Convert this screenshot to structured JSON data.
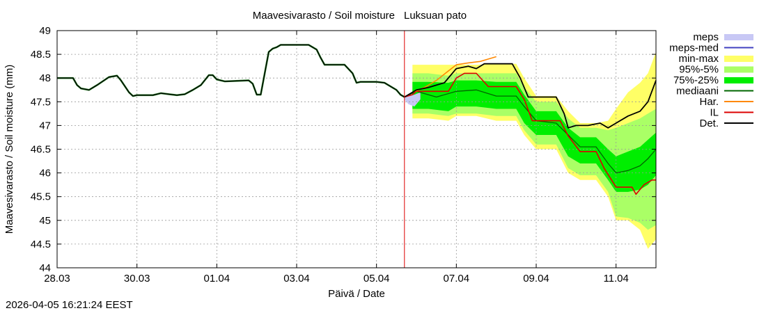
{
  "chart_data": {
    "type": "line",
    "title": "Maavesivarasto / Soil moisture",
    "station": "Luksuan pato",
    "xlabel": "Päivä / Date",
    "ylabel": "Maavesivarasto / Soil moisture (mm)",
    "ylim": [
      44,
      49
    ],
    "xlim_days": [
      0,
      15
    ],
    "y_ticks": [
      44,
      44.5,
      45,
      45.5,
      46,
      46.5,
      47,
      47.5,
      48,
      48.5,
      49
    ],
    "x_ticks": [
      {
        "day": 0,
        "label": "28.03"
      },
      {
        "day": 2,
        "label": "30.03"
      },
      {
        "day": 4,
        "label": "01.04"
      },
      {
        "day": 6,
        "label": "03.04"
      },
      {
        "day": 8,
        "label": "05.04"
      },
      {
        "day": 10,
        "label": "07.04"
      },
      {
        "day": 12,
        "label": "09.04"
      },
      {
        "day": 14,
        "label": "11.04"
      }
    ],
    "grid": true,
    "forecast_start_day": 8.7,
    "legend": [
      {
        "key": "meps",
        "label": "meps",
        "color": "#c8c8f5",
        "kind": "band"
      },
      {
        "key": "meps_med",
        "label": "meps-med",
        "color": "#4040c0",
        "kind": "line"
      },
      {
        "key": "minmax",
        "label": "min-max",
        "color": "#ffff66",
        "kind": "band"
      },
      {
        "key": "p95_5",
        "label": "95%-5%",
        "color": "#aaff66",
        "kind": "band"
      },
      {
        "key": "p75_25",
        "label": "75%-25%",
        "color": "#00ee00",
        "kind": "band"
      },
      {
        "key": "median",
        "label": "mediaani",
        "color": "#006600",
        "kind": "line"
      },
      {
        "key": "har",
        "label": "Har.",
        "color": "#ff8800",
        "kind": "line"
      },
      {
        "key": "il",
        "label": "IL",
        "color": "#dd0000",
        "kind": "line"
      },
      {
        "key": "det",
        "label": "Det.",
        "color": "#000000",
        "kind": "line"
      }
    ],
    "series": {
      "observed": {
        "x": [
          0,
          0.4,
          0.5,
          0.6,
          0.8,
          1.0,
          1.3,
          1.5,
          1.6,
          1.8,
          1.9,
          2.0,
          2.2,
          2.4,
          2.6,
          2.8,
          3.0,
          3.2,
          3.4,
          3.6,
          3.8,
          3.9,
          4.0,
          4.2,
          4.5,
          4.8,
          4.9,
          5.0,
          5.1,
          5.3,
          5.4,
          5.5,
          5.6,
          5.8,
          6.0,
          6.1,
          6.3,
          6.5,
          6.6,
          6.7,
          6.8,
          7.0,
          7.2,
          7.4,
          7.5,
          7.6,
          7.8,
          8.0,
          8.2,
          8.5,
          8.6,
          8.7
        ],
        "y": [
          48.0,
          48.0,
          47.85,
          47.78,
          47.75,
          47.85,
          48.02,
          48.05,
          47.95,
          47.7,
          47.62,
          47.64,
          47.64,
          47.64,
          47.68,
          47.66,
          47.64,
          47.66,
          47.75,
          47.85,
          48.06,
          48.06,
          47.97,
          47.93,
          47.94,
          47.95,
          47.88,
          47.65,
          47.65,
          48.55,
          48.62,
          48.65,
          48.7,
          48.7,
          48.7,
          48.7,
          48.7,
          48.6,
          48.43,
          48.28,
          48.28,
          48.28,
          48.28,
          48.1,
          47.9,
          47.92,
          47.92,
          47.92,
          47.9,
          47.75,
          47.65,
          47.6
        ]
      },
      "det": {
        "x": [
          8.7,
          8.8,
          9.0,
          9.3,
          9.7,
          10.0,
          10.3,
          10.5,
          10.7,
          11.0,
          11.4,
          11.6,
          11.8,
          12.0,
          12.2,
          12.5,
          12.7,
          12.8,
          13.0,
          13.3,
          13.6,
          13.8,
          14.0,
          14.3,
          14.6,
          14.8,
          15.0
        ],
        "y": [
          47.6,
          47.65,
          47.75,
          47.8,
          47.9,
          48.2,
          48.25,
          48.2,
          48.3,
          48.3,
          48.3,
          48.0,
          47.6,
          47.6,
          47.6,
          47.6,
          47.25,
          46.95,
          47.0,
          47.0,
          47.05,
          46.95,
          47.05,
          47.2,
          47.3,
          47.5,
          47.95
        ]
      },
      "har": {
        "x": [
          8.7,
          8.9,
          9.2,
          9.5,
          9.8,
          10.0,
          10.3,
          10.6,
          10.8,
          11.0
        ],
        "y": [
          47.6,
          47.7,
          47.8,
          47.95,
          48.15,
          48.28,
          48.32,
          48.35,
          48.4,
          48.45
        ]
      },
      "il": {
        "x": [
          8.7,
          8.9,
          9.0,
          9.5,
          9.8,
          10.0,
          10.2,
          10.3,
          10.5,
          10.8,
          11.5,
          11.7,
          11.9,
          12.2,
          12.6,
          12.8,
          13.1,
          13.5,
          13.7,
          14.0,
          14.4,
          14.5,
          14.7,
          14.9,
          15.0
        ],
        "y": [
          47.6,
          47.65,
          47.72,
          47.72,
          47.72,
          48.0,
          48.1,
          48.1,
          48.1,
          47.82,
          47.82,
          47.55,
          47.1,
          47.1,
          47.1,
          46.78,
          46.45,
          46.45,
          46.1,
          45.7,
          45.7,
          45.55,
          45.75,
          45.85,
          45.85
        ]
      },
      "median": {
        "x": [
          8.7,
          9.0,
          9.5,
          10.0,
          10.5,
          11.0,
          11.5,
          11.7,
          12.0,
          12.5,
          12.8,
          13.1,
          13.5,
          13.8,
          14.0,
          14.3,
          14.6,
          14.8,
          15.0
        ],
        "y": [
          47.6,
          47.72,
          47.6,
          47.72,
          47.75,
          47.62,
          47.62,
          47.4,
          47.1,
          47.05,
          46.8,
          46.55,
          46.55,
          46.2,
          46.0,
          46.05,
          46.15,
          46.3,
          46.5
        ]
      },
      "meps_band": {
        "x": [
          8.7,
          8.8,
          8.95,
          9.1
        ],
        "lo": [
          47.55,
          47.45,
          47.4,
          47.55
        ],
        "hi": [
          47.6,
          47.62,
          47.65,
          47.7
        ]
      },
      "minmax": {
        "x": [
          8.9,
          9.3,
          9.8,
          10.0,
          10.5,
          11.0,
          11.5,
          11.7,
          12.0,
          12.5,
          12.8,
          13.1,
          13.5,
          13.8,
          14.0,
          14.3,
          14.6,
          14.8,
          15.0
        ],
        "lo": [
          47.15,
          47.15,
          47.1,
          47.2,
          47.2,
          47.1,
          47.1,
          46.8,
          46.5,
          46.5,
          46.0,
          45.85,
          45.85,
          45.5,
          45.0,
          45.0,
          44.8,
          44.4,
          44.6
        ],
        "hi": [
          48.28,
          48.28,
          48.28,
          48.28,
          48.28,
          48.3,
          48.3,
          48.0,
          47.62,
          47.62,
          47.3,
          47.05,
          47.05,
          47.1,
          47.35,
          47.7,
          47.9,
          48.1,
          48.55
        ]
      },
      "p95_5": {
        "x": [
          8.9,
          9.3,
          9.8,
          10.0,
          10.5,
          11.0,
          11.5,
          11.7,
          12.0,
          12.5,
          12.8,
          13.1,
          13.5,
          13.8,
          14.0,
          14.3,
          14.6,
          14.8,
          15.0
        ],
        "lo": [
          47.25,
          47.25,
          47.2,
          47.25,
          47.25,
          47.2,
          47.2,
          46.9,
          46.6,
          46.6,
          46.1,
          45.95,
          45.95,
          45.6,
          45.08,
          45.05,
          44.95,
          44.8,
          44.9
        ],
        "hi": [
          48.1,
          48.1,
          48.05,
          48.1,
          48.1,
          48.1,
          48.1,
          47.8,
          47.5,
          47.5,
          47.15,
          46.95,
          46.95,
          46.9,
          46.95,
          47.05,
          47.15,
          47.25,
          47.35
        ]
      },
      "p75_25": {
        "x": [
          8.9,
          9.3,
          9.8,
          10.0,
          10.5,
          11.0,
          11.5,
          11.7,
          12.0,
          12.5,
          12.8,
          13.1,
          13.5,
          13.8,
          14.0,
          14.3,
          14.6,
          14.8,
          15.0
        ],
        "lo": [
          47.35,
          47.35,
          47.3,
          47.4,
          47.4,
          47.35,
          47.35,
          47.05,
          46.8,
          46.8,
          46.35,
          46.2,
          46.2,
          45.85,
          45.6,
          45.6,
          45.65,
          45.75,
          45.95
        ],
        "hi": [
          47.92,
          47.92,
          47.9,
          47.95,
          47.95,
          47.92,
          47.92,
          47.65,
          47.3,
          47.3,
          46.95,
          46.75,
          46.75,
          46.5,
          46.35,
          46.45,
          46.55,
          46.7,
          46.85
        ]
      }
    }
  },
  "footer": {
    "timestamp": "2026-04-05 16:21:24 EEST"
  }
}
